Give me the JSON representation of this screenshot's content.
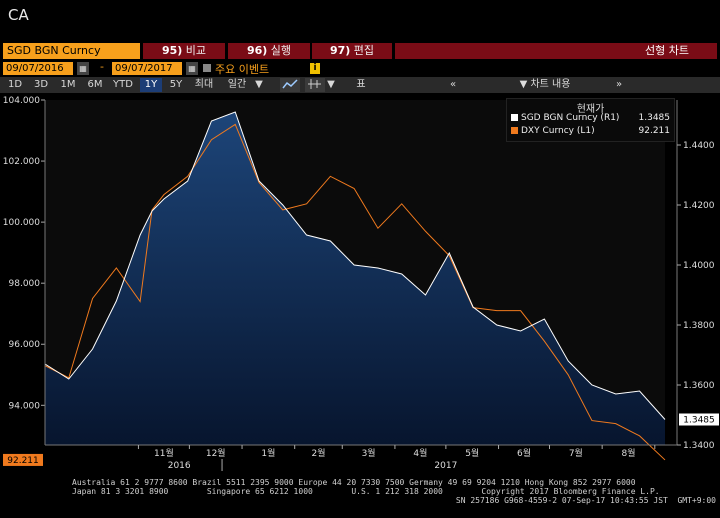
{
  "window_title": "CA",
  "function_bar": {
    "ticker": "SGD BGN Curncy",
    "buttons": [
      {
        "num": "95)",
        "label": "비교"
      },
      {
        "num": "96)",
        "label": "실행"
      },
      {
        "num": "97)",
        "label": "편집"
      }
    ],
    "right_label": "선형 차트"
  },
  "date_range": {
    "start": "09/07/2016",
    "separator": "-",
    "end": "09/07/2017",
    "events_label": "주요 이벤트",
    "info_icon": "i"
  },
  "toolbar": {
    "periods": [
      "1D",
      "3D",
      "1M",
      "6M",
      "YTD",
      "1Y",
      "5Y",
      "최대"
    ],
    "selected_period": "1Y",
    "frequency": "일간",
    "frequency_arrow": "▼",
    "table_label": "표",
    "collapse_icon": "«",
    "chart_content_label": "차트 내용",
    "expand_icon": "»"
  },
  "legend": {
    "title": "현재가",
    "entries": [
      {
        "name": "SGD BGN Curncy (R1)",
        "value": "1.3485",
        "color": "#ffffff"
      },
      {
        "name": "DXY Curncy (L1)",
        "value": "92.211",
        "color": "#f07a1e"
      }
    ]
  },
  "chart_data": {
    "type": "line",
    "x": [
      "2016-09-07",
      "2016-09-21",
      "2016-10-05",
      "2016-10-19",
      "2016-11-02",
      "2016-11-09",
      "2016-11-16",
      "2016-11-30",
      "2016-12-14",
      "2016-12-28",
      "2017-01-11",
      "2017-01-25",
      "2017-02-08",
      "2017-02-22",
      "2017-03-08",
      "2017-03-22",
      "2017-04-05",
      "2017-04-19",
      "2017-05-03",
      "2017-05-17",
      "2017-05-31",
      "2017-06-14",
      "2017-06-28",
      "2017-07-12",
      "2017-07-26",
      "2017-08-09",
      "2017-08-23",
      "2017-09-07"
    ],
    "series": [
      {
        "name": "SGD BGN Curncy",
        "axis": "right",
        "values": [
          1.367,
          1.362,
          1.372,
          1.388,
          1.41,
          1.418,
          1.422,
          1.428,
          1.448,
          1.451,
          1.428,
          1.42,
          1.41,
          1.408,
          1.4,
          1.399,
          1.397,
          1.39,
          1.404,
          1.386,
          1.38,
          1.378,
          1.382,
          1.368,
          1.36,
          1.357,
          1.358,
          1.3485
        ]
      },
      {
        "name": "DXY Curncy",
        "axis": "left",
        "values": [
          95.3,
          94.9,
          97.5,
          98.5,
          97.4,
          100.4,
          100.9,
          101.5,
          102.7,
          103.2,
          101.3,
          100.4,
          100.6,
          101.5,
          101.1,
          99.8,
          100.6,
          99.7,
          98.9,
          97.2,
          97.1,
          97.1,
          96.1,
          95.0,
          93.5,
          93.4,
          93.0,
          92.211
        ]
      }
    ],
    "left_ticks": [
      "104.000",
      "102.000",
      "100.000",
      "98.000",
      "96.000",
      "94.000"
    ],
    "left_ylim": [
      92.7,
      104.0
    ],
    "right_ticks": [
      "1.4400",
      "1.4200",
      "1.4000",
      "1.3800",
      "1.3600",
      "1.3400"
    ],
    "right_ylim": [
      1.34,
      1.455
    ],
    "month_labels": [
      "11월",
      "12월",
      "1월",
      "2월",
      "3월",
      "4월",
      "5월",
      "6월",
      "7월",
      "8월"
    ],
    "year_labels": [
      "2016",
      "2017"
    ],
    "last_left_label": "92.211",
    "last_right_label": "1.3485",
    "colors": {
      "sgd": "#ffffff",
      "dxy": "#f07a1e",
      "fill_top": "#1d4579",
      "fill_bottom": "#07152e",
      "last_left_bg": "#f07a1e"
    }
  },
  "footer": {
    "line1": "Australia 61 2 9777 8600 Brazil 5511 2395 9000 Europe 44 20 7330 7500 Germany 49 69 9204 1210 Hong Kong 852 2977 6000",
    "line2": "Japan 81 3 3201 8900        Singapore 65 6212 1000        U.S. 1 212 318 2000        Copyright 2017 Bloomberg Finance L.P.",
    "line3": "SN 257186 G968-4559-2 07-Sep-17 10:43:55 JST  GMT+9:00"
  }
}
